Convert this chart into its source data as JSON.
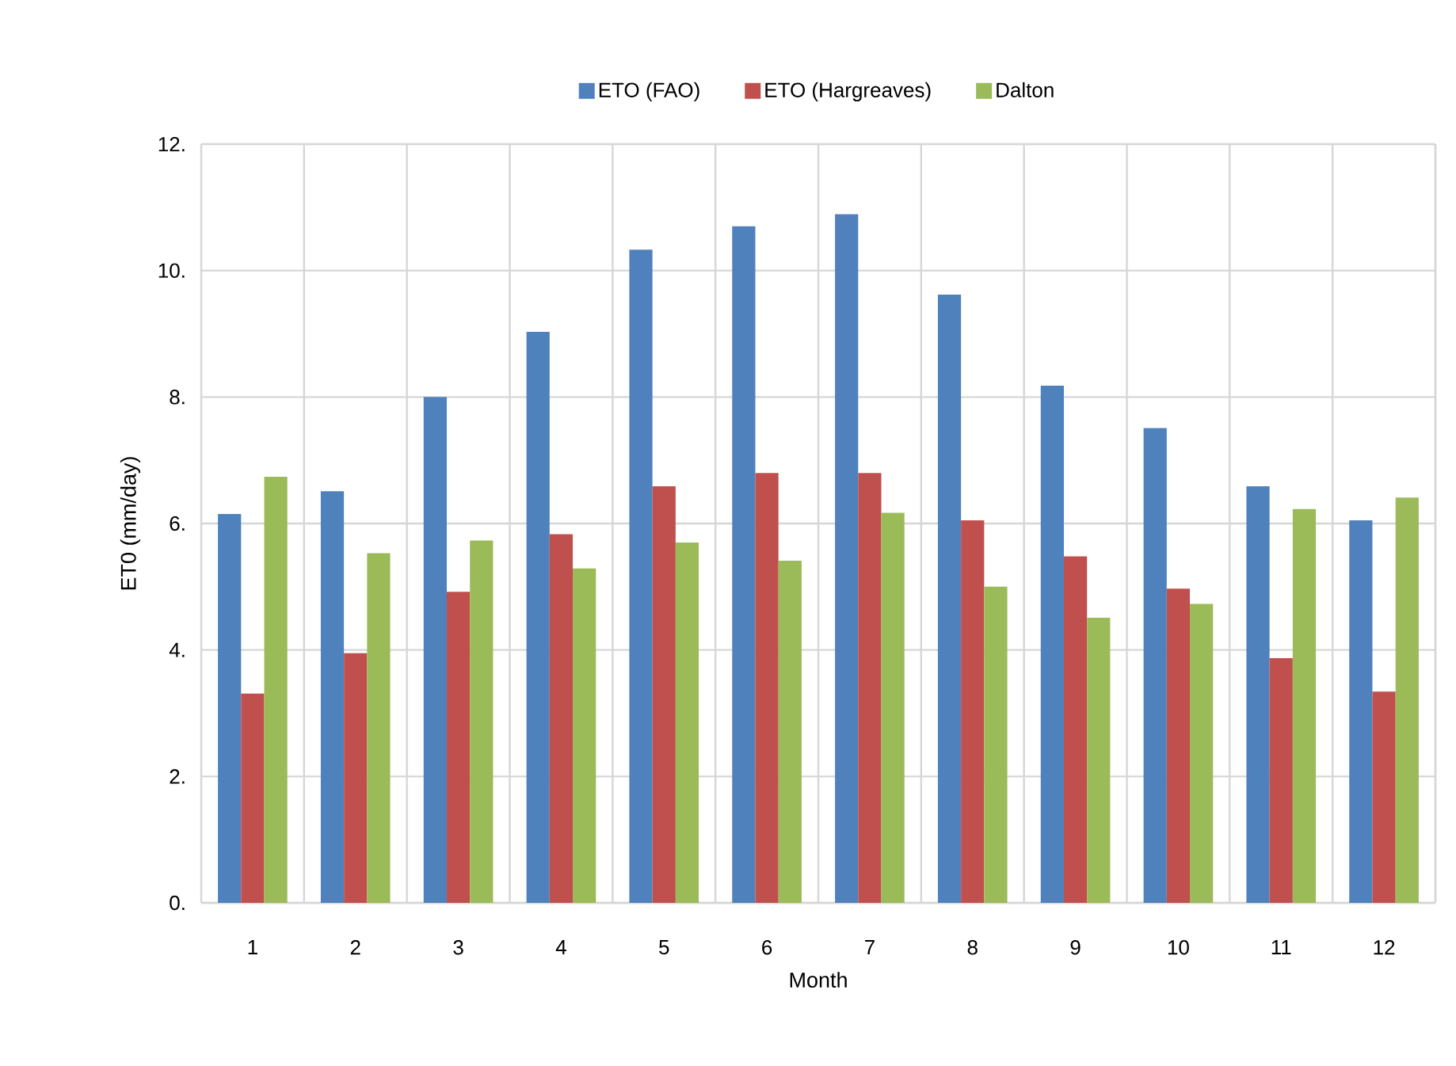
{
  "chart_data": {
    "type": "bar",
    "xlabel": "Month",
    "ylabel": "ET0 (mm/day)",
    "categories": [
      "1",
      "2",
      "3",
      "4",
      "5",
      "6",
      "7",
      "8",
      "9",
      "10",
      "11",
      "12"
    ],
    "series": [
      {
        "name": "ETO  (FAO)",
        "color": "#4f81bd",
        "values": [
          6.15,
          6.51,
          8.0,
          9.03,
          10.33,
          10.7,
          10.89,
          9.62,
          8.18,
          7.51,
          6.59,
          6.05
        ]
      },
      {
        "name": "ETO  (Hargreaves)",
        "color": "#c0504d",
        "values": [
          3.31,
          3.95,
          4.92,
          5.83,
          6.59,
          6.8,
          6.8,
          6.05,
          5.48,
          4.97,
          3.87,
          3.34
        ]
      },
      {
        "name": "Dalton",
        "color": "#9bbb59",
        "values": [
          6.74,
          5.53,
          5.73,
          5.29,
          5.7,
          5.41,
          6.17,
          5.0,
          4.51,
          4.73,
          6.23,
          6.41
        ]
      }
    ],
    "ylim": [
      0,
      12
    ],
    "yticks": [
      {
        "value": 0,
        "label": "0."
      },
      {
        "value": 2,
        "label": "2."
      },
      {
        "value": 4,
        "label": "4."
      },
      {
        "value": 6,
        "label": "6."
      },
      {
        "value": 8,
        "label": "8."
      },
      {
        "value": 10,
        "label": "10."
      },
      {
        "value": 12,
        "label": "12."
      }
    ],
    "grid": true,
    "legend": "top"
  }
}
